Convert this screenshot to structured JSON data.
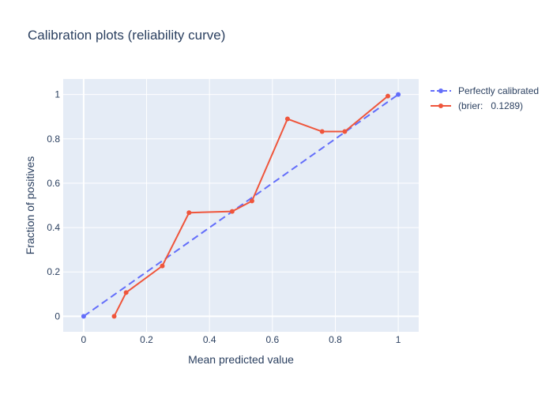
{
  "chart_data": {
    "type": "line",
    "title": "Calibration plots (reliability curve)",
    "xlabel": "Mean predicted value",
    "ylabel": "Fraction of positives",
    "xlim": [
      -0.065,
      1.065
    ],
    "ylim": [
      -0.07,
      1.07
    ],
    "x_ticks": [
      0,
      0.2,
      0.4,
      0.6,
      0.8,
      1
    ],
    "x_tick_labels": [
      "0",
      "0.2",
      "0.4",
      "0.6",
      "0.8",
      "1"
    ],
    "y_ticks": [
      0,
      0.2,
      0.4,
      0.6,
      0.8,
      1
    ],
    "y_tick_labels": [
      "0",
      "0.2",
      "0.4",
      "0.6",
      "0.8",
      "1"
    ],
    "grid": true,
    "legend_position": "top-right",
    "series": [
      {
        "name": "Perfectly calibrated",
        "color": "#636efa",
        "dash": "dash",
        "x": [
          0,
          1
        ],
        "y": [
          0,
          1
        ]
      },
      {
        "name": "(brier:   0.1289)",
        "color": "#ef553b",
        "dash": "solid",
        "x": [
          0.097,
          0.135,
          0.25,
          0.335,
          0.472,
          0.535,
          0.648,
          0.758,
          0.83,
          0.967
        ],
        "y": [
          0.0,
          0.107,
          0.227,
          0.467,
          0.473,
          0.52,
          0.89,
          0.833,
          0.833,
          0.993
        ]
      }
    ]
  }
}
